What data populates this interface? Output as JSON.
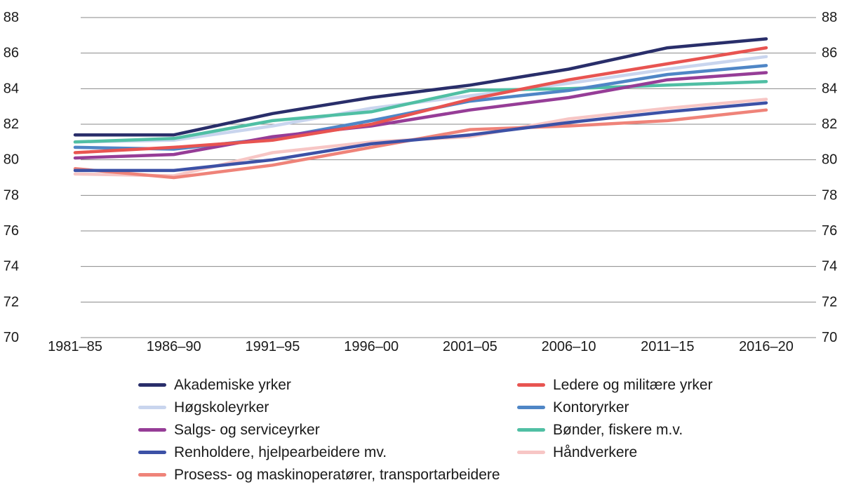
{
  "chart_data": {
    "type": "line",
    "title": "",
    "xlabel": "",
    "ylabel": "",
    "categories": [
      "1981–85",
      "1986–90",
      "1991–95",
      "1996–00",
      "2001–05",
      "2006–10",
      "2011–15",
      "2016–20"
    ],
    "y_axis": {
      "min": 70,
      "max": 88,
      "tick_step": 2,
      "ticks": [
        88,
        86,
        84,
        82,
        80,
        78,
        76,
        74,
        72,
        70
      ],
      "label_sides": "both"
    },
    "grid": true,
    "gridline_color": "#8a8a8a",
    "text_color": "#1a1a1a",
    "legend_position": "bottom-two-columns",
    "series": [
      {
        "name": "Akademiske yrker",
        "color": "#292e6a",
        "values": [
          81.4,
          81.4,
          82.6,
          83.5,
          84.2,
          85.1,
          86.3,
          86.8
        ]
      },
      {
        "name": "Ledere og militære yrker",
        "color": "#e85451",
        "values": [
          80.4,
          80.7,
          81.1,
          82.0,
          83.4,
          84.5,
          85.4,
          86.3
        ]
      },
      {
        "name": "Høgskoleyrker",
        "color": "#c9d5ee",
        "values": [
          81.0,
          81.1,
          81.9,
          82.9,
          83.6,
          84.3,
          85.1,
          85.8
        ]
      },
      {
        "name": "Kontoryrker",
        "color": "#4f86c6",
        "values": [
          80.7,
          80.6,
          81.2,
          82.2,
          83.3,
          83.9,
          84.8,
          85.3
        ]
      },
      {
        "name": "Salgs- og serviceyrker",
        "color": "#963d97",
        "values": [
          80.1,
          80.3,
          81.3,
          81.9,
          82.8,
          83.5,
          84.5,
          84.9
        ]
      },
      {
        "name": "Bønder, fiskere m.v.",
        "color": "#50bfa4",
        "values": [
          81.0,
          81.2,
          82.2,
          82.7,
          83.9,
          84.0,
          84.2,
          84.4
        ]
      },
      {
        "name": "Renholdere, hjelpearbeidere mv.",
        "color": "#3c51a6",
        "values": [
          79.4,
          79.4,
          80.0,
          80.9,
          81.4,
          82.1,
          82.7,
          83.2
        ]
      },
      {
        "name": "Håndverkere",
        "color": "#f7c6c5",
        "values": [
          79.2,
          79.1,
          80.4,
          81.0,
          81.3,
          82.3,
          82.9,
          83.4
        ]
      },
      {
        "name": "Prosess- og maskinoperatører, transportarbeidere",
        "color": "#ef8379",
        "values": [
          79.5,
          79.0,
          79.7,
          80.7,
          81.7,
          81.9,
          82.2,
          82.8
        ]
      }
    ]
  }
}
